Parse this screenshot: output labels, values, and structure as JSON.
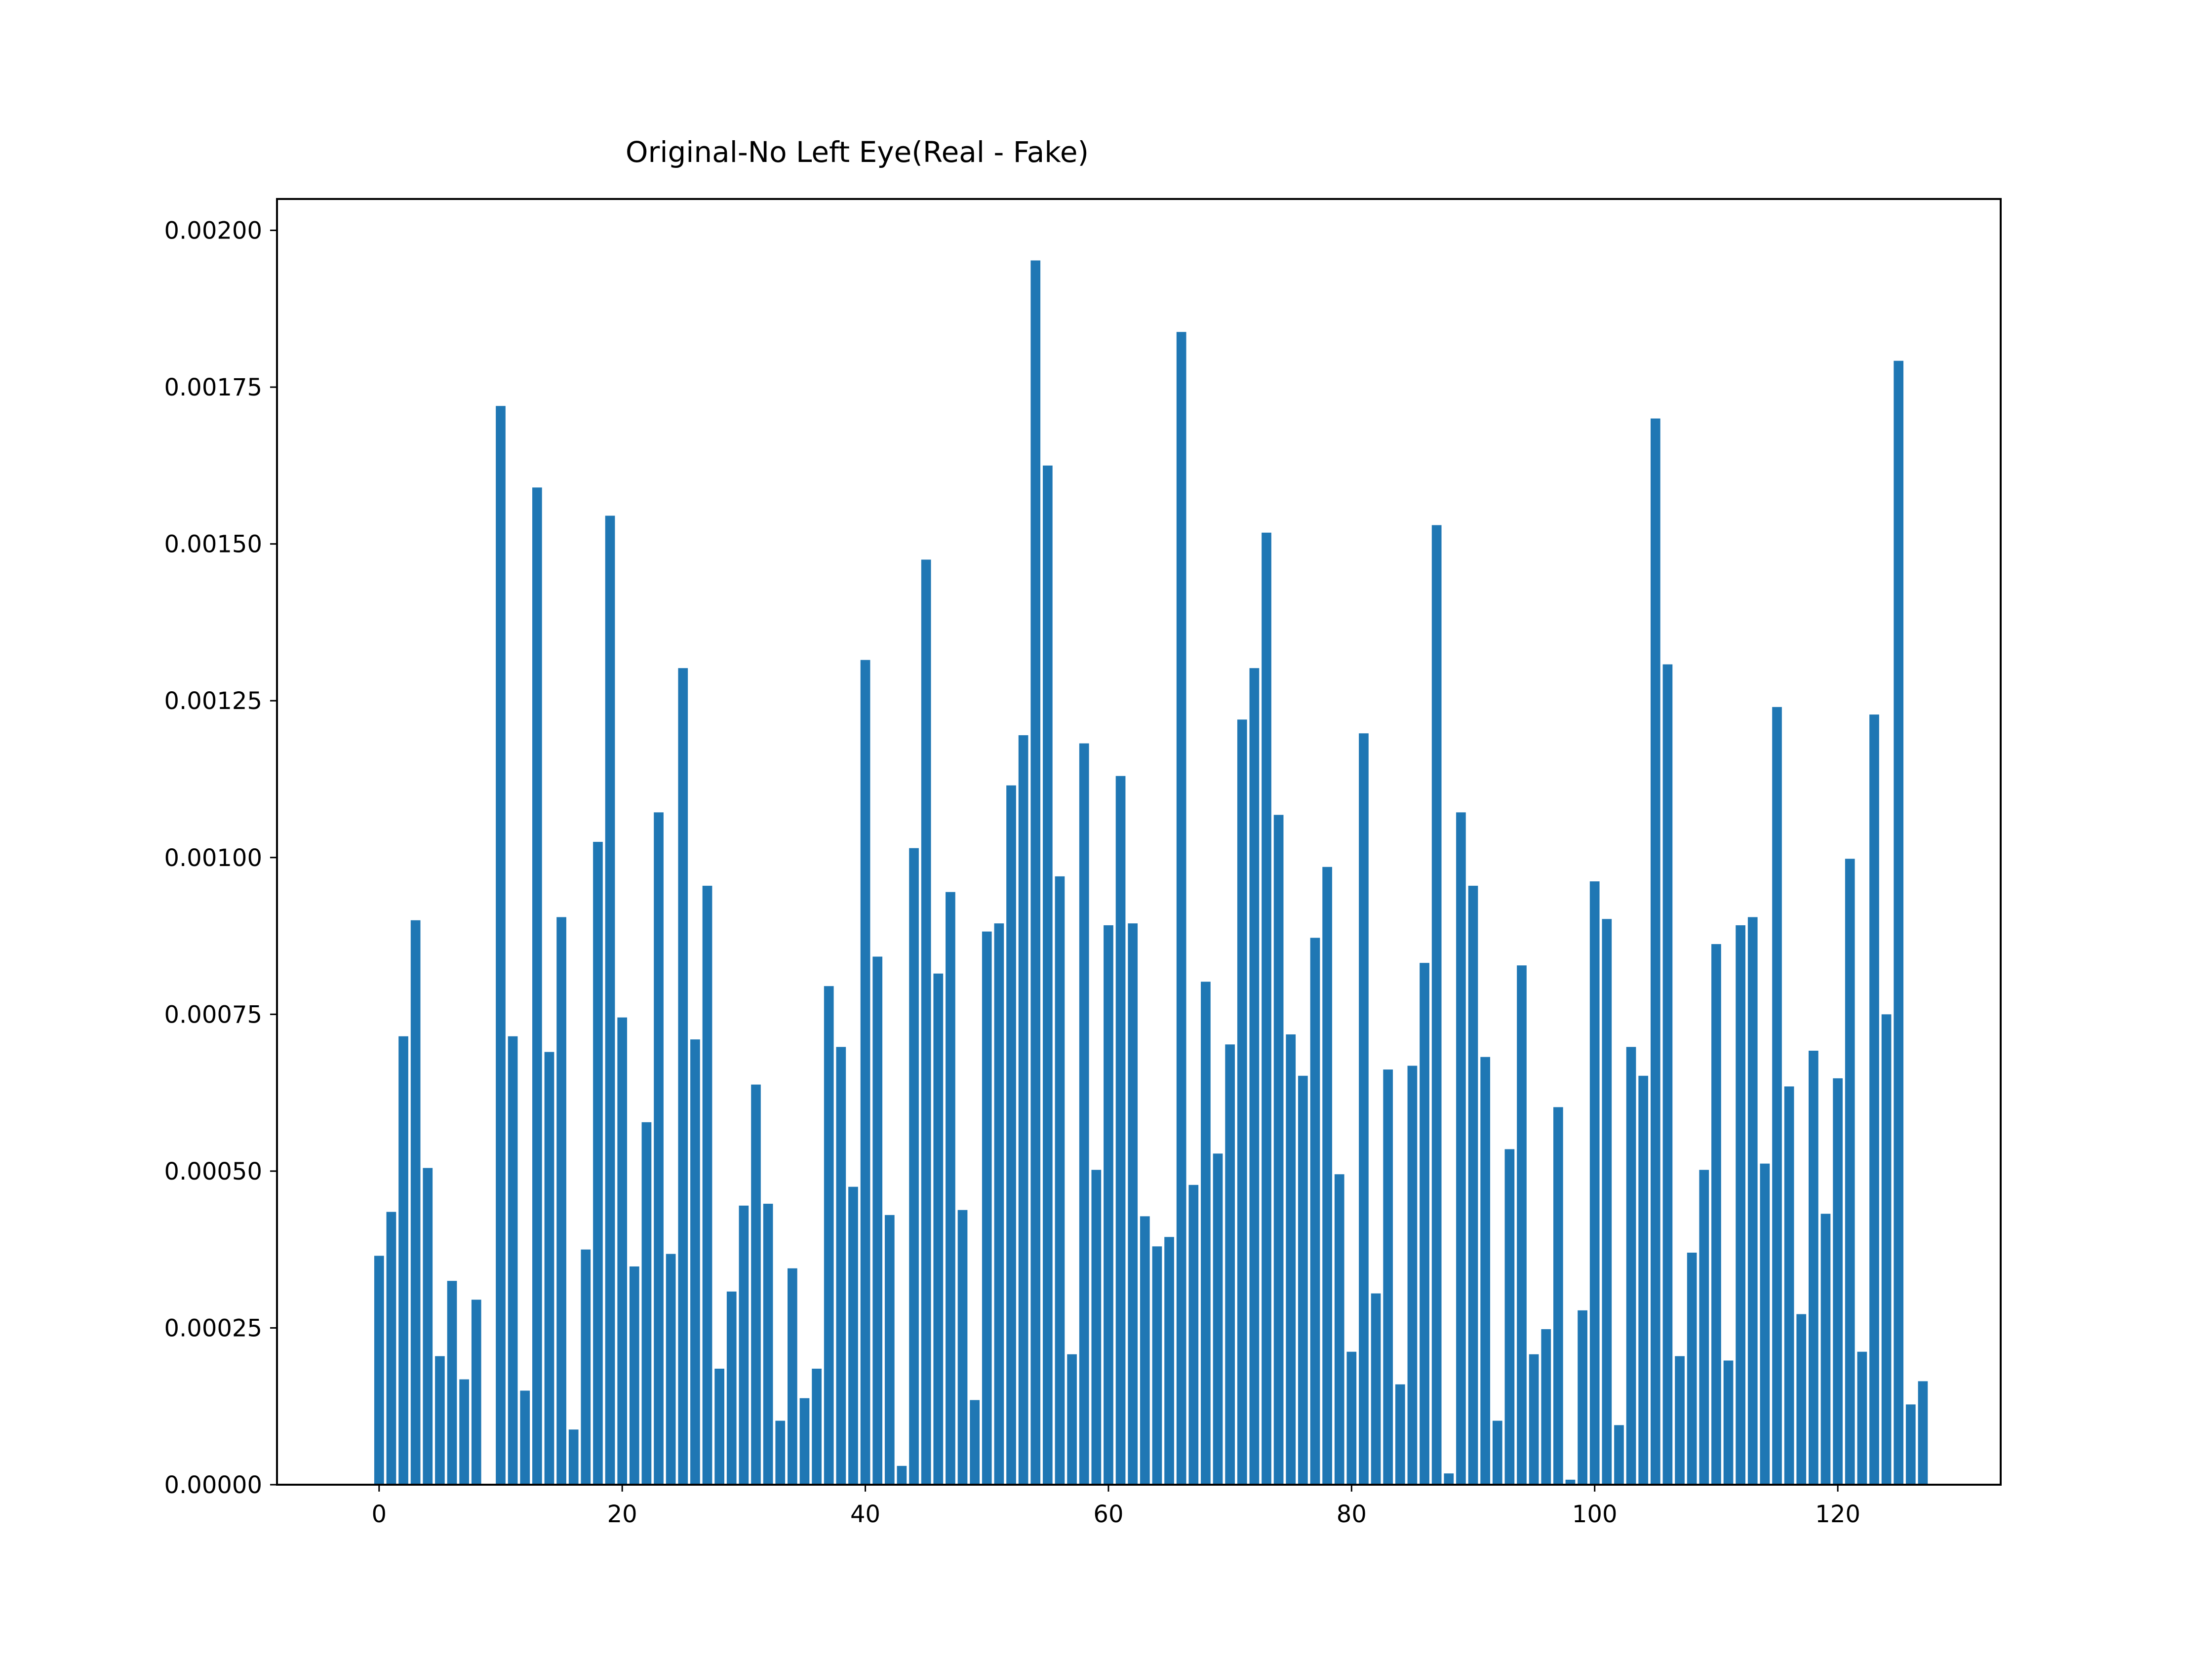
{
  "chart_data": {
    "type": "bar",
    "title": "Original-No Left Eye(Real - Fake)",
    "xlabel": "",
    "ylabel": "",
    "xlim": [
      -8.4,
      133.4
    ],
    "ylim": [
      0,
      0.00205
    ],
    "x_ticks": [
      0,
      20,
      40,
      60,
      80,
      100,
      120
    ],
    "x_tick_labels": [
      "0",
      "20",
      "40",
      "60",
      "80",
      "100",
      "120"
    ],
    "y_ticks": [
      0,
      0.00025,
      0.0005,
      0.00075,
      0.001,
      0.00125,
      0.0015,
      0.00175,
      0.002
    ],
    "y_tick_labels": [
      "0.00000",
      "0.00025",
      "0.00050",
      "0.00075",
      "0.00100",
      "0.00125",
      "0.00150",
      "0.00175",
      "0.00200"
    ],
    "grid": false,
    "bar_color": "#1f77b4",
    "x": [
      0,
      1,
      2,
      3,
      4,
      5,
      6,
      7,
      8,
      9,
      10,
      11,
      12,
      13,
      14,
      15,
      16,
      17,
      18,
      19,
      20,
      21,
      22,
      23,
      24,
      25,
      26,
      27,
      28,
      29,
      30,
      31,
      32,
      33,
      34,
      35,
      36,
      37,
      38,
      39,
      40,
      41,
      42,
      43,
      44,
      45,
      46,
      47,
      48,
      49,
      50,
      51,
      52,
      53,
      54,
      55,
      56,
      57,
      58,
      59,
      60,
      61,
      62,
      63,
      64,
      65,
      66,
      67,
      68,
      69,
      70,
      71,
      72,
      73,
      74,
      75,
      76,
      77,
      78,
      79,
      80,
      81,
      82,
      83,
      84,
      85,
      86,
      87,
      88,
      89,
      90,
      91,
      92,
      93,
      94,
      95,
      96,
      97,
      98,
      99,
      100,
      101,
      102,
      103,
      104,
      105,
      106,
      107,
      108,
      109,
      110,
      111,
      112,
      113,
      114,
      115,
      116,
      117,
      118,
      119,
      120,
      121,
      122,
      123,
      124,
      125,
      126,
      127
    ],
    "values": [
      0.000365,
      0.000435,
      0.000715,
      0.0009,
      0.000505,
      0.000205,
      0.000325,
      0.000168,
      0.000295,
      0,
      0.00172,
      0.000715,
      0.00015,
      0.00159,
      0.00069,
      0.000905,
      8.8e-05,
      0.000375,
      0.001025,
      0.001545,
      0.000745,
      0.000348,
      0.000578,
      0.001072,
      0.000368,
      0.001302,
      0.00071,
      0.000955,
      0.000185,
      0.000308,
      0.000445,
      0.000638,
      0.000448,
      0.000102,
      0.000345,
      0.000138,
      0.000185,
      0.000795,
      0.000698,
      0.000475,
      0.001315,
      0.000842,
      0.00043,
      3e-05,
      0.001015,
      0.001475,
      0.000815,
      0.000945,
      0.000438,
      0.000135,
      0.000882,
      0.000895,
      0.001115,
      0.001195,
      0.001952,
      0.001625,
      0.00097,
      0.000208,
      0.001182,
      0.000502,
      0.000892,
      0.00113,
      0.000895,
      0.000428,
      0.00038,
      0.000395,
      0.001838,
      0.000478,
      0.000802,
      0.000528,
      0.000702,
      0.00122,
      0.001302,
      0.001518,
      0.001068,
      0.000718,
      0.000652,
      0.000872,
      0.000985,
      0.000495,
      0.000212,
      0.001198,
      0.000305,
      0.000662,
      0.00016,
      0.000668,
      0.000832,
      0.00153,
      1.8e-05,
      0.001072,
      0.000955,
      0.000682,
      0.000102,
      0.000535,
      0.000828,
      0.000208,
      0.000248,
      0.000602,
      8e-06,
      0.000278,
      0.000962,
      0.000902,
      9.5e-05,
      0.000698,
      0.000652,
      0.0017,
      0.001308,
      0.000205,
      0.00037,
      0.000502,
      0.000862,
      0.000198,
      0.000892,
      0.000905,
      0.000512,
      0.00124,
      0.000635,
      0.000272,
      0.000692,
      0.000432,
      0.000648,
      0.000998,
      0.000212,
      0.001228,
      0.00075,
      0.001792,
      0.000128,
      0.000165
    ]
  }
}
